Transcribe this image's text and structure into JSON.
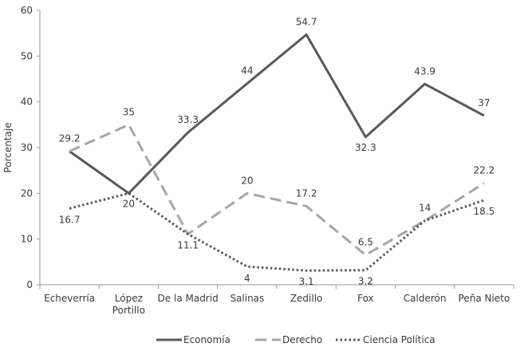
{
  "chart_data": {
    "type": "line",
    "title": "",
    "xlabel": "",
    "ylabel": "Porcentaje",
    "ylim": [
      0,
      60
    ],
    "yticks": [
      0,
      10,
      20,
      30,
      40,
      50,
      60
    ],
    "grid": false,
    "legend_position": "bottom",
    "categories": [
      [
        "Echeverría"
      ],
      [
        "López",
        "Portillo"
      ],
      [
        "De la Madrid"
      ],
      [
        "Salinas"
      ],
      [
        "Zedillo"
      ],
      [
        "Fox"
      ],
      [
        "Calderón"
      ],
      [
        "Peña Nieto"
      ]
    ],
    "series": [
      {
        "name": "Economía",
        "style": "solid",
        "color": "#595959",
        "values": [
          29.2,
          20,
          33.3,
          44,
          54.7,
          32.3,
          43.9,
          37
        ],
        "labels": [
          "",
          "20",
          "33.3",
          "44",
          "54.7",
          "32.3",
          "43.9",
          "37"
        ]
      },
      {
        "name": "Derecho",
        "style": "dashed",
        "color": "#a6a6a6",
        "values": [
          29.2,
          35,
          11.1,
          20,
          17.2,
          6.5,
          14,
          22.2
        ],
        "labels": [
          "29.2",
          "35",
          "11.1",
          "20",
          "17.2",
          "6.5",
          "14",
          "22.2"
        ]
      },
      {
        "name": "Ciencia Política",
        "style": "dotted",
        "color": "#595959",
        "values": [
          16.7,
          20,
          11.1,
          4,
          3.1,
          3.2,
          14,
          18.5
        ],
        "labels": [
          "16.7",
          "",
          "",
          "4",
          "3.1",
          "3.2",
          "",
          "18.5"
        ]
      }
    ]
  }
}
